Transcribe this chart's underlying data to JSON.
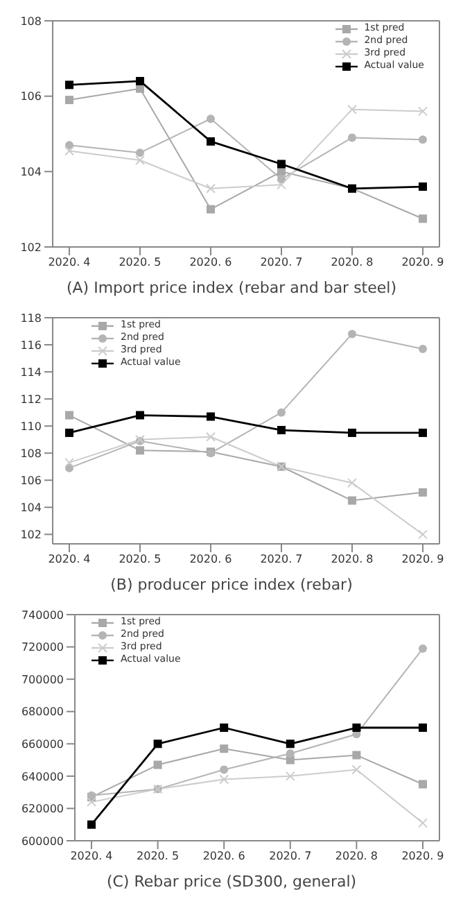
{
  "chart_data": [
    {
      "type": "line",
      "title": "(A) Import price index (rebar and bar steel)",
      "categories": [
        "2020. 4",
        "2020. 5",
        "2020. 6",
        "2020. 7",
        "2020. 8",
        "2020. 9"
      ],
      "series": [
        {
          "name": "1st pred",
          "color": "#a8a8a8",
          "marker": "square",
          "values": [
            105.9,
            106.2,
            103.0,
            104.0,
            103.55,
            102.75
          ]
        },
        {
          "name": "2nd pred",
          "color": "#b4b4b4",
          "marker": "circle",
          "values": [
            104.7,
            104.5,
            105.4,
            103.8,
            104.9,
            104.85
          ]
        },
        {
          "name": "3rd pred",
          "color": "#cccccc",
          "marker": "cross",
          "values": [
            104.55,
            104.3,
            103.55,
            103.65,
            105.65,
            105.6
          ]
        },
        {
          "name": "Actual value",
          "color": "#000000",
          "marker": "square",
          "values": [
            106.3,
            106.4,
            104.8,
            104.2,
            103.55,
            103.6
          ]
        }
      ],
      "ylim": [
        102,
        108
      ],
      "yticks": [
        102,
        104,
        106,
        108
      ],
      "grid": false,
      "legend": "top right"
    },
    {
      "type": "line",
      "title": "(B) producer price index (rebar)",
      "categories": [
        "2020. 4",
        "2020. 5",
        "2020. 6",
        "2020. 7",
        "2020. 8",
        "2020. 9"
      ],
      "series": [
        {
          "name": "1st pred",
          "color": "#a8a8a8",
          "marker": "square",
          "values": [
            110.8,
            108.2,
            108.1,
            107.0,
            104.5,
            105.1
          ]
        },
        {
          "name": "2nd pred",
          "color": "#b4b4b4",
          "marker": "circle",
          "values": [
            106.9,
            108.9,
            108.0,
            111.0,
            116.8,
            115.7
          ]
        },
        {
          "name": "3rd pred",
          "color": "#cccccc",
          "marker": "cross",
          "values": [
            107.3,
            109.0,
            109.2,
            107.0,
            105.8,
            102.0
          ]
        },
        {
          "name": "Actual value",
          "color": "#000000",
          "marker": "square",
          "values": [
            109.5,
            110.8,
            110.7,
            109.7,
            109.5,
            109.5
          ]
        }
      ],
      "ylim": [
        101.3,
        118
      ],
      "yticks": [
        102,
        104,
        106,
        108,
        110,
        112,
        114,
        116,
        118
      ],
      "grid": false,
      "legend": "top left"
    },
    {
      "type": "line",
      "title": "(C) Rebar price (SD300, general)",
      "categories": [
        "2020. 4",
        "2020. 5",
        "2020. 6",
        "2020. 7",
        "2020. 8",
        "2020. 9"
      ],
      "series": [
        {
          "name": "1st pred",
          "color": "#a8a8a8",
          "marker": "square",
          "values": [
            627000,
            647000,
            657000,
            650000,
            653000,
            635000
          ]
        },
        {
          "name": "2nd pred",
          "color": "#b4b4b4",
          "marker": "circle",
          "values": [
            628000,
            632000,
            644000,
            654000,
            666000,
            719000
          ]
        },
        {
          "name": "3rd pred",
          "color": "#cccccc",
          "marker": "cross",
          "values": [
            624000,
            632000,
            638000,
            640000,
            644000,
            611000
          ]
        },
        {
          "name": "Actual value",
          "color": "#000000",
          "marker": "square",
          "values": [
            610000,
            660000,
            670000,
            660000,
            670000,
            670000
          ]
        }
      ],
      "ylim": [
        600000,
        740000
      ],
      "yticks": [
        600000,
        620000,
        640000,
        660000,
        680000,
        700000,
        720000,
        740000
      ],
      "grid": false,
      "legend": "top left"
    }
  ]
}
